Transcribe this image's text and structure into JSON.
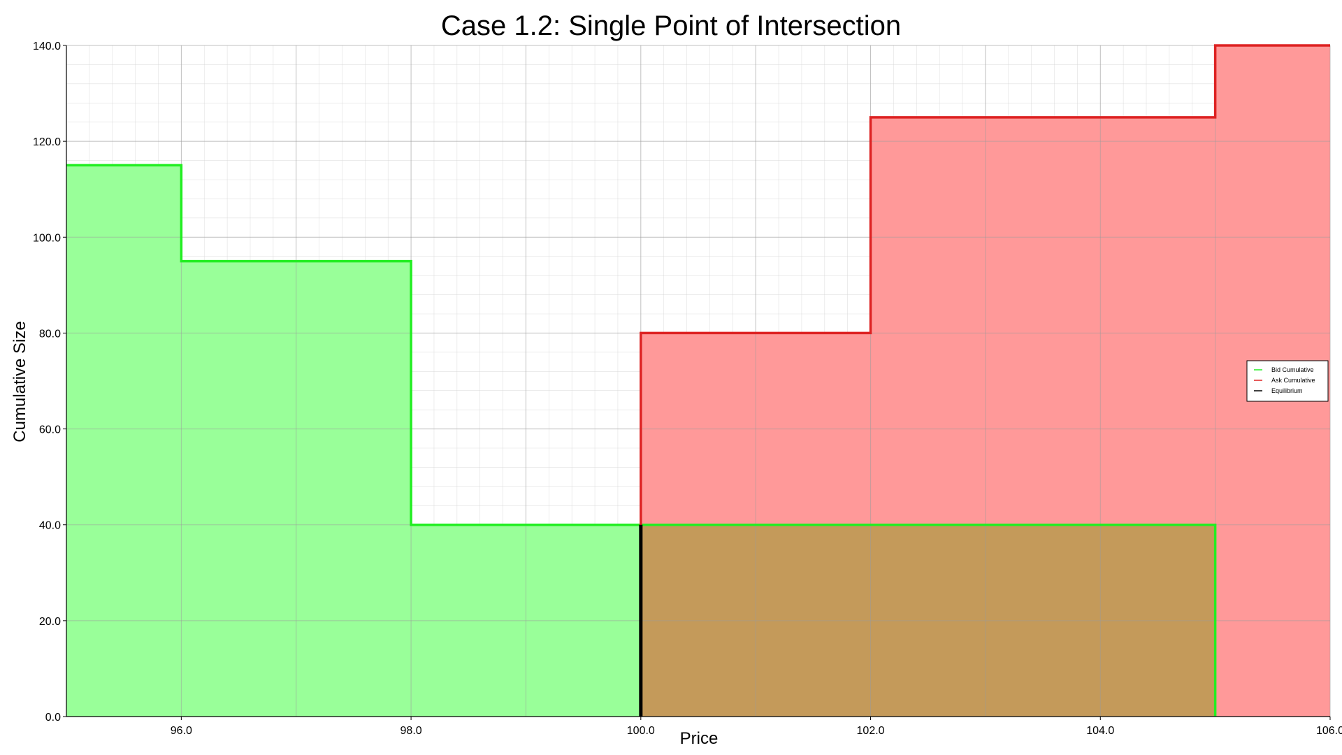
{
  "chart_data": {
    "type": "area",
    "title": "Case 1.2: Single Point of Intersection",
    "xlabel": "Price",
    "ylabel": "Cumulative Size",
    "xlim": [
      95.0,
      106.0
    ],
    "ylim": [
      0.0,
      140.0
    ],
    "x_ticks": [
      96.0,
      98.0,
      100.0,
      102.0,
      104.0,
      106.0
    ],
    "y_ticks": [
      0.0,
      20.0,
      40.0,
      60.0,
      80.0,
      100.0,
      120.0,
      140.0
    ],
    "tick_labels_x": [
      "96.0",
      "98.0",
      "100.0",
      "102.0",
      "104.0",
      "106.0"
    ],
    "tick_labels_y": [
      "0.0",
      "20.0",
      "40.0",
      "60.0",
      "80.0",
      "100.0",
      "120.0",
      "140.0"
    ],
    "grid": true,
    "minor_grid": true,
    "legend_position": "right",
    "series": [
      {
        "name": "Bid Cumulative",
        "color": "#22ee22",
        "fill": "#99ff99",
        "step_points": [
          [
            95.0,
            115.0
          ],
          [
            96.0,
            115.0
          ],
          [
            96.0,
            95.0
          ],
          [
            98.0,
            95.0
          ],
          [
            98.0,
            40.0
          ],
          [
            105.0,
            40.0
          ],
          [
            105.0,
            0.0
          ]
        ]
      },
      {
        "name": "Ask Cumulative",
        "color": "#dd2222",
        "fill": "#ff9999",
        "step_points": [
          [
            100.0,
            0.0
          ],
          [
            100.0,
            80.0
          ],
          [
            102.0,
            80.0
          ],
          [
            102.0,
            125.0
          ],
          [
            105.0,
            125.0
          ],
          [
            105.0,
            140.0
          ],
          [
            106.0,
            140.0
          ]
        ]
      },
      {
        "name": "Equilibrium",
        "color": "#000000",
        "x": 100.0,
        "y_range": [
          0.0,
          40.0
        ]
      }
    ],
    "overlap_fill": "#c49a5a"
  }
}
